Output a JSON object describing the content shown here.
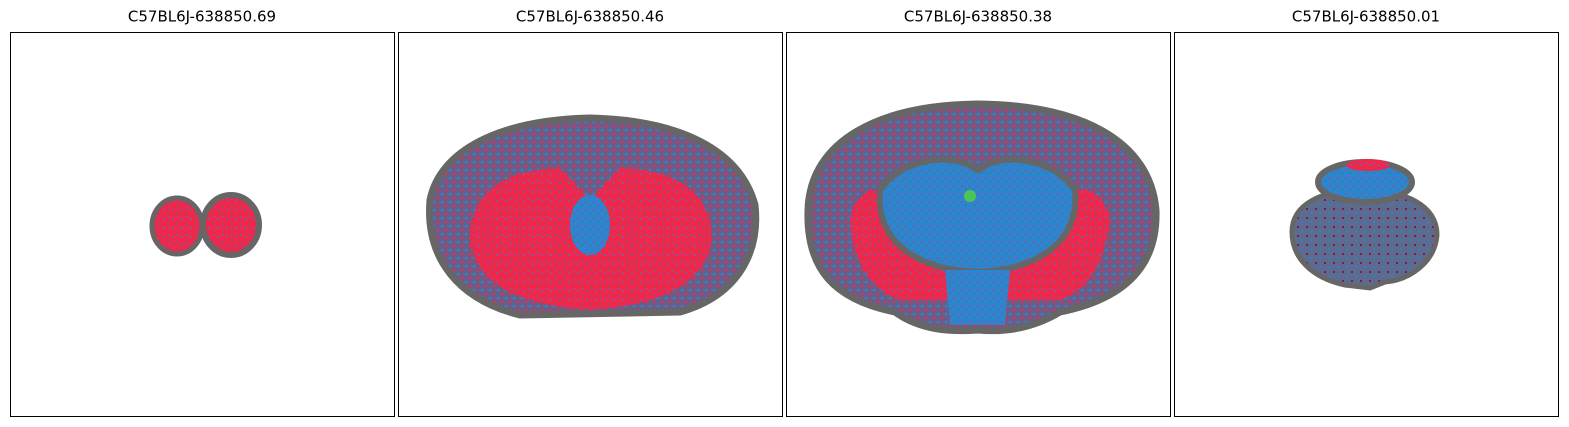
{
  "panels": [
    {
      "title": "C57BL6J-638850.69"
    },
    {
      "title": "C57BL6J-638850.46"
    },
    {
      "title": "C57BL6J-638850.38"
    },
    {
      "title": "C57BL6J-638850.01"
    }
  ]
}
